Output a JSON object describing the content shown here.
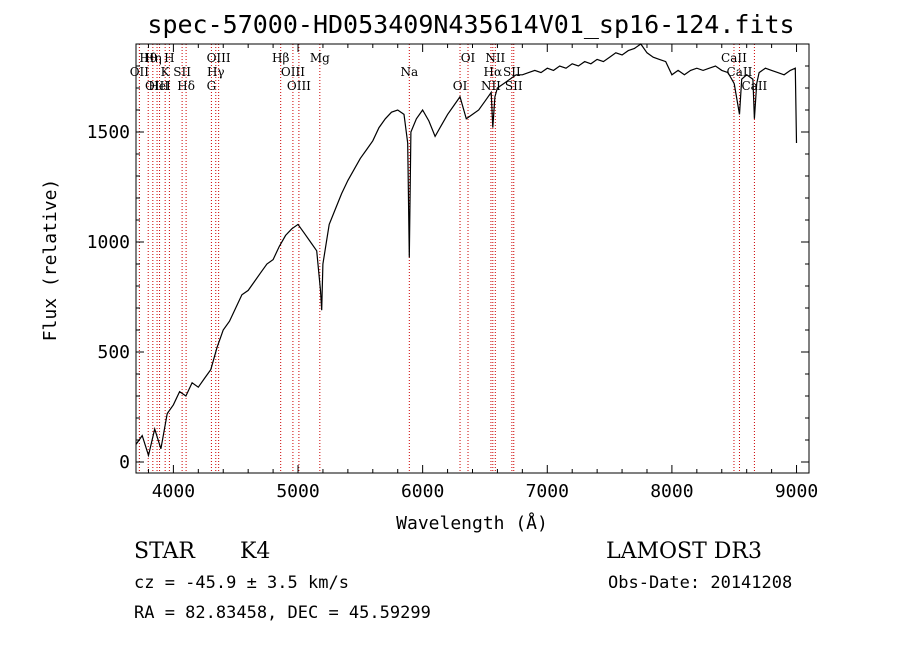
{
  "chart_data": {
    "type": "line",
    "title": "spec-57000-HD053409N435614V01_sp16-124.fits",
    "xlabel": "Wavelength (Å)",
    "ylabel": "Flux (relative)",
    "xlim": [
      3700,
      9100
    ],
    "ylim": [
      -50,
      1900
    ],
    "xticks": [
      4000,
      5000,
      6000,
      7000,
      8000,
      9000
    ],
    "yticks": [
      0,
      500,
      1000,
      1500
    ],
    "grid": false,
    "series": [
      {
        "name": "flux",
        "x": [
          3700,
          3750,
          3800,
          3850,
          3900,
          3950,
          4000,
          4050,
          4100,
          4150,
          4200,
          4250,
          4300,
          4350,
          4400,
          4450,
          4500,
          4550,
          4600,
          4650,
          4700,
          4750,
          4800,
          4850,
          4900,
          4950,
          5000,
          5050,
          5100,
          5150,
          5180,
          5190,
          5200,
          5250,
          5300,
          5350,
          5400,
          5450,
          5500,
          5550,
          5600,
          5650,
          5700,
          5750,
          5800,
          5850,
          5880,
          5893,
          5906,
          5950,
          6000,
          6050,
          6100,
          6150,
          6200,
          6250,
          6300,
          6350,
          6400,
          6450,
          6500,
          6550,
          6563,
          6580,
          6600,
          6650,
          6700,
          6750,
          6800,
          6850,
          6900,
          6950,
          7000,
          7050,
          7100,
          7150,
          7200,
          7250,
          7300,
          7350,
          7400,
          7450,
          7500,
          7550,
          7600,
          7650,
          7700,
          7750,
          7800,
          7850,
          7900,
          7950,
          8000,
          8050,
          8100,
          8150,
          8200,
          8250,
          8300,
          8350,
          8400,
          8450,
          8500,
          8542,
          8560,
          8600,
          8650,
          8662,
          8680,
          8700,
          8750,
          8800,
          8850,
          8900,
          8950,
          8990,
          9000
        ],
        "values": [
          80,
          120,
          30,
          150,
          60,
          220,
          260,
          320,
          300,
          360,
          340,
          380,
          420,
          520,
          600,
          640,
          700,
          760,
          780,
          820,
          860,
          900,
          920,
          980,
          1030,
          1060,
          1080,
          1040,
          1000,
          960,
          780,
          690,
          900,
          1080,
          1150,
          1220,
          1280,
          1330,
          1380,
          1420,
          1460,
          1520,
          1560,
          1590,
          1600,
          1580,
          1450,
          930,
          1500,
          1560,
          1600,
          1550,
          1480,
          1530,
          1580,
          1620,
          1660,
          1560,
          1580,
          1600,
          1640,
          1680,
          1520,
          1660,
          1700,
          1720,
          1740,
          1760,
          1760,
          1770,
          1780,
          1770,
          1790,
          1780,
          1800,
          1790,
          1810,
          1800,
          1820,
          1810,
          1830,
          1820,
          1840,
          1860,
          1850,
          1870,
          1880,
          1900,
          1860,
          1840,
          1830,
          1820,
          1760,
          1780,
          1760,
          1780,
          1790,
          1780,
          1790,
          1800,
          1780,
          1770,
          1720,
          1580,
          1740,
          1760,
          1740,
          1560,
          1720,
          1770,
          1790,
          1780,
          1770,
          1760,
          1780,
          1790,
          1450
        ]
      }
    ],
    "lines": [
      {
        "name": "Hθ",
        "x": 3798,
        "label": "Hθ"
      },
      {
        "name": "OII",
        "x": 3727,
        "label": "OII"
      },
      {
        "name": "OIII",
        "x": 3869,
        "label": "OIII"
      },
      {
        "name": "Hη",
        "x": 3835,
        "label": "Hη"
      },
      {
        "name": "K",
        "x": 3934,
        "label": "K"
      },
      {
        "name": "HeI",
        "x": 3889,
        "label": "HeI"
      },
      {
        "name": "H",
        "x": 3968,
        "label": "H"
      },
      {
        "name": "SII",
        "x": 4070,
        "label": "SII"
      },
      {
        "name": "Hδ",
        "x": 4102,
        "label": "Hδ"
      },
      {
        "name": "OIII",
        "x": 4363,
        "label": "OIII"
      },
      {
        "name": "Hγ",
        "x": 4340,
        "label": "Hγ"
      },
      {
        "name": "G",
        "x": 4305,
        "label": "G"
      },
      {
        "name": "Hβ",
        "x": 4861,
        "label": "Hβ"
      },
      {
        "name": "OIII",
        "x": 4959,
        "label": "OIII"
      },
      {
        "name": "OIII",
        "x": 5007,
        "label": "OIII"
      },
      {
        "name": "Mg",
        "x": 5175,
        "label": "Mg"
      },
      {
        "name": "Na",
        "x": 5893,
        "label": "Na"
      },
      {
        "name": "OI",
        "x": 6300,
        "label": "OI"
      },
      {
        "name": "OI",
        "x": 6364,
        "label": "OI"
      },
      {
        "name": "Hα",
        "x": 6563,
        "label": "Hα"
      },
      {
        "name": "NII",
        "x": 6548,
        "label": "NII"
      },
      {
        "name": "NII",
        "x": 6583,
        "label": "NII"
      },
      {
        "name": "SII",
        "x": 6716,
        "label": "SII"
      },
      {
        "name": "SII",
        "x": 6731,
        "label": "SII"
      },
      {
        "name": "CaII",
        "x": 8498,
        "label": "CaII"
      },
      {
        "name": "CaII",
        "x": 8542,
        "label": "CaII"
      },
      {
        "name": "CaII",
        "x": 8662,
        "label": "CaII"
      }
    ]
  },
  "info": {
    "object_type": "STAR",
    "subclass": "K4",
    "survey": "LAMOST DR3",
    "cz": "cz = -45.9 ± 3.5 km/s",
    "obs_date": "Obs-Date: 20141208",
    "coords": "RA =  82.83458, DEC =  45.59299"
  }
}
